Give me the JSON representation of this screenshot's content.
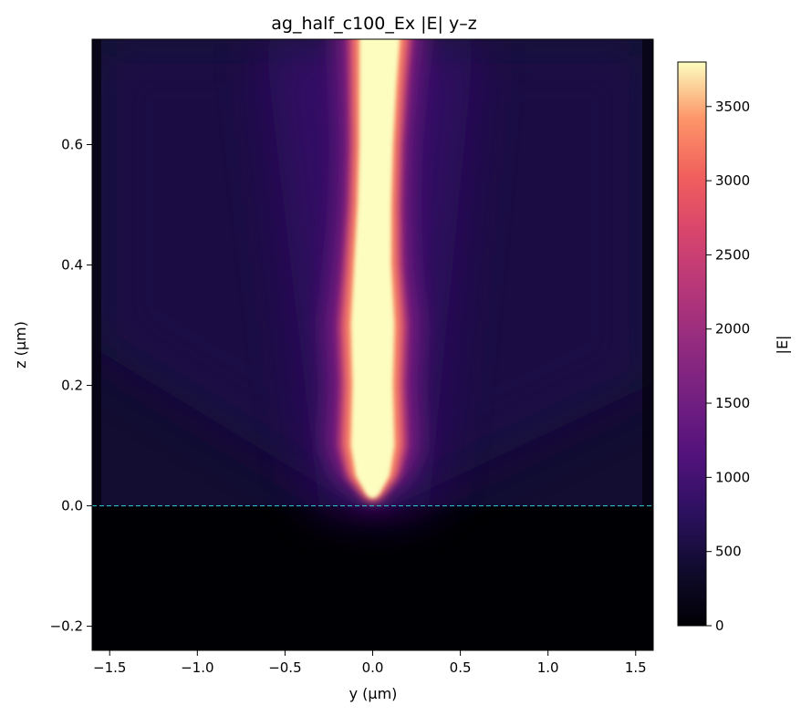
{
  "chart_data": {
    "type": "heatmap",
    "title": "ag_half_c100_Ex |E| y–z",
    "xlabel": "y (µm)",
    "ylabel": "z (µm)",
    "xlim": [
      -1.6,
      1.6
    ],
    "ylim": [
      -0.24,
      0.775
    ],
    "xticks": [
      -1.5,
      -1.0,
      -0.5,
      0.0,
      0.5,
      1.0,
      1.5
    ],
    "xtick_labels": [
      "−1.5",
      "−1.0",
      "−0.5",
      "0.0",
      "0.5",
      "1.0",
      "1.5"
    ],
    "yticks": [
      -0.2,
      0.0,
      0.2,
      0.4,
      0.6
    ],
    "ytick_labels": [
      "−0.2",
      "0.0",
      "0.2",
      "0.4",
      "0.6"
    ],
    "colormap": "magma",
    "colorbar": {
      "label": "|E|",
      "range": [
        0,
        3800
      ],
      "ticks": [
        0,
        500,
        1000,
        1500,
        2000,
        2500,
        3000,
        3500
      ],
      "tick_labels": [
        "0",
        "500",
        "1000",
        "1500",
        "2000",
        "2500",
        "3000",
        "3500"
      ]
    },
    "interface_line": {
      "z": 0.0,
      "color": "#29b8c4",
      "style": "dashed"
    },
    "field_profile": {
      "description_points_z": [
        0.02,
        0.05,
        0.1,
        0.2,
        0.3,
        0.4,
        0.5,
        0.6,
        0.7,
        0.775
      ],
      "beam_center_y": [
        0.0,
        0.0,
        0.0,
        0.0,
        0.0,
        0.0,
        0.01,
        0.02,
        0.03,
        0.04
      ],
      "beam_half_width_y": [
        0.04,
        0.1,
        0.13,
        0.12,
        0.13,
        0.11,
        0.1,
        0.1,
        0.11,
        0.12
      ],
      "peak_E": [
        3800,
        3800,
        3800,
        3800,
        3800,
        3800,
        3800,
        3800,
        3800,
        3800
      ]
    }
  }
}
